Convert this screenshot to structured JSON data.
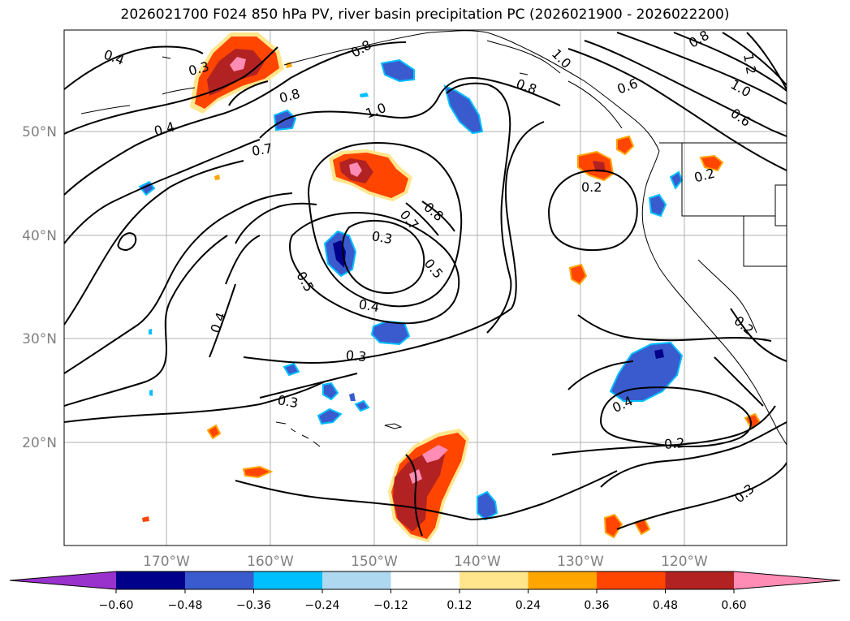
{
  "title": "2026021700 F024 850 hPa PV, river basin precipitation PC (2026021900 - 2026022200)",
  "map": {
    "lat_labels": [
      "50°N",
      "40°N",
      "30°N",
      "20°N"
    ],
    "lon_labels": [
      "170°W",
      "160°W",
      "150°W",
      "140°W",
      "130°W",
      "120°W"
    ],
    "contour_labels": [
      "0.4",
      "0.3",
      "0.4",
      "0.8",
      "0.8",
      "1.0",
      "1.0",
      "0.8",
      "0.8",
      "0.6",
      "0.6",
      "1.2",
      "1.0",
      "0.7",
      "0.2",
      "0.2",
      "0.8",
      "0.7",
      "0.5",
      "0.3",
      "0.5",
      "0.4",
      "0.4",
      "0.3",
      "0.3",
      "0.4",
      "0.2",
      "0.2",
      "0.3"
    ]
  },
  "colorbar": {
    "ticks": [
      "−0.60",
      "−0.48",
      "−0.36",
      "−0.24",
      "−0.12",
      "0.12",
      "0.24",
      "0.36",
      "0.48",
      "0.60"
    ],
    "colors": [
      "#9932cc",
      "#00008b",
      "#3a5bcd",
      "#00bfff",
      "#add8f0",
      "#ffffff",
      "#ffe68c",
      "#ffa500",
      "#ff4500",
      "#b22222",
      "#ff8cb4"
    ]
  }
}
